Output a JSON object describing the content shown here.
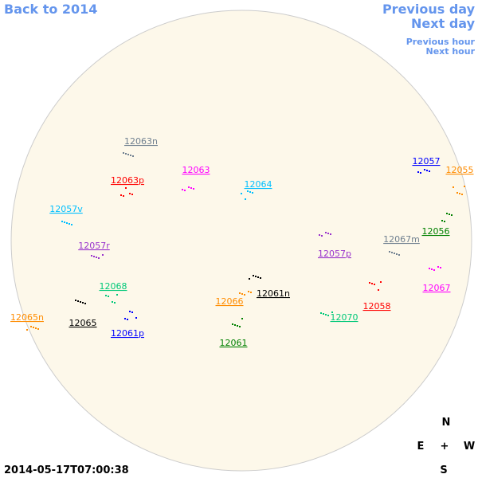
{
  "nav": {
    "back": "Back to 2014",
    "previous_day": "Previous day",
    "next_day": "Next day",
    "previous_hour": "Previous hour",
    "next_hour": "Next hour"
  },
  "regions": [
    {
      "label": "12063n",
      "color": "#708090"
    },
    {
      "label": "12063p",
      "color": "#ff0000"
    },
    {
      "label": "12063",
      "color": "#ff00ff"
    },
    {
      "label": "12064",
      "color": "#00bfff"
    },
    {
      "label": "12057v",
      "color": "#00bfff"
    },
    {
      "label": "12057r",
      "color": "#9932cc"
    },
    {
      "label": "12068",
      "color": "#00c878"
    },
    {
      "label": "12065n",
      "color": "#ff8c00"
    },
    {
      "label": "12065",
      "color": "#000000"
    },
    {
      "label": "12061p",
      "color": "#0000ff"
    },
    {
      "label": "12066",
      "color": "#ff8c00"
    },
    {
      "label": "12061n",
      "color": "#000000"
    },
    {
      "label": "12061",
      "color": "#008000"
    },
    {
      "label": "12070",
      "color": "#00c878"
    },
    {
      "label": "12058",
      "color": "#ff0000"
    },
    {
      "label": "12057p",
      "color": "#9932cc"
    },
    {
      "label": "12067m",
      "color": "#708090"
    },
    {
      "label": "12056",
      "color": "#008000"
    },
    {
      "label": "12067",
      "color": "#ff00ff"
    },
    {
      "label": "12057",
      "color": "#0000ff"
    },
    {
      "label": "12055",
      "color": "#ff8c00"
    }
  ],
  "compass": {
    "north": "N",
    "east": "E",
    "center": "+",
    "west": "W",
    "south": "S"
  },
  "timestamp": "2014-05-17T07:00:38"
}
